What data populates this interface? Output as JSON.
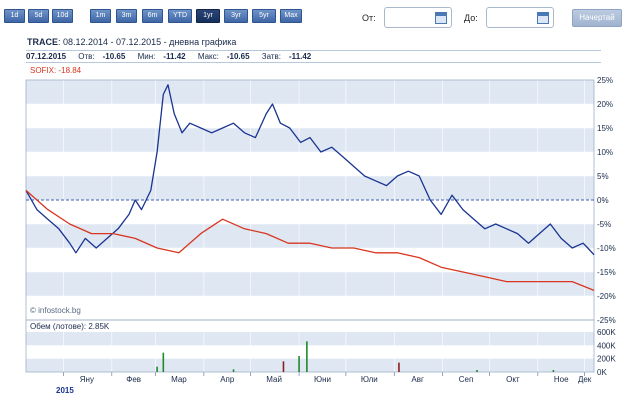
{
  "toolbar": {
    "ranges": [
      "1d",
      "5d",
      "10d",
      "1m",
      "3m",
      "6m",
      "YTD",
      "1yr",
      "3yr",
      "5yr",
      "Max"
    ],
    "active_range": "1yr",
    "from_label": "От:",
    "to_label": "До:",
    "from_value": "",
    "to_value": "",
    "go_label": "Начертай"
  },
  "header": {
    "symbol": "TRACE",
    "period": ": 08.12.2014 - 07.12.2015 - дневна графика"
  },
  "quote": {
    "date": "07.12.2015",
    "open_label": "Отв:",
    "open": "-10.65",
    "low_label": "Мин:",
    "low": "-11.42",
    "high_label": "Макс:",
    "high": "-10.65",
    "close_label": "Затв:",
    "close": "-11.42"
  },
  "compare": {
    "label": "SOFIX: -18.84",
    "color": "#d8361f"
  },
  "watermark": "© infostock.bg",
  "volume": {
    "label": "Обем (лотове): 2.85K"
  },
  "colors": {
    "main_line": "#1a3490",
    "compare_line": "#d8361f",
    "band": "#dfe7f3",
    "up_bar": "#1f8a2a",
    "down_bar": "#8a1f1f"
  },
  "chart_data": {
    "type": "line",
    "x": [
      "2014-12-08",
      "2015-01-05",
      "2015-02-02",
      "2015-03-02",
      "2015-04-01",
      "2015-05-04",
      "2015-06-01",
      "2015-07-01",
      "2015-08-03",
      "2015-09-01",
      "2015-10-01",
      "2015-11-02",
      "2015-12-01",
      "2015-12-07"
    ],
    "x_ticks": [
      "Яну",
      "Фев",
      "Мар",
      "Апр",
      "Май",
      "Юни",
      "Юли",
      "Авг",
      "Сеп",
      "Окт",
      "Ное",
      "Дек"
    ],
    "x_year_label": "2015",
    "y_ticks": [
      "25%",
      "20%",
      "15%",
      "10%",
      "5%",
      "0%",
      "-5%",
      "-10%",
      "-15%",
      "-20%",
      "-25%"
    ],
    "ylim": [
      -25,
      25
    ],
    "series": [
      {
        "name": "TRACE",
        "points": [
          [
            "2014-12-08",
            2
          ],
          [
            "2014-12-15",
            -2
          ],
          [
            "2014-12-22",
            -4
          ],
          [
            "2014-12-29",
            -6
          ],
          [
            "2015-01-05",
            -9
          ],
          [
            "2015-01-09",
            -11
          ],
          [
            "2015-01-15",
            -8
          ],
          [
            "2015-01-22",
            -10
          ],
          [
            "2015-01-29",
            -8
          ],
          [
            "2015-02-05",
            -6
          ],
          [
            "2015-02-12",
            -3
          ],
          [
            "2015-02-16",
            0
          ],
          [
            "2015-02-20",
            -2
          ],
          [
            "2015-02-26",
            2
          ],
          [
            "2015-03-02",
            10
          ],
          [
            "2015-03-06",
            22
          ],
          [
            "2015-03-09",
            24
          ],
          [
            "2015-03-13",
            18
          ],
          [
            "2015-03-18",
            14
          ],
          [
            "2015-03-23",
            16
          ],
          [
            "2015-03-30",
            15
          ],
          [
            "2015-04-06",
            14
          ],
          [
            "2015-04-13",
            15
          ],
          [
            "2015-04-20",
            16
          ],
          [
            "2015-04-27",
            14
          ],
          [
            "2015-05-04",
            13
          ],
          [
            "2015-05-11",
            18
          ],
          [
            "2015-05-15",
            20
          ],
          [
            "2015-05-20",
            16
          ],
          [
            "2015-05-26",
            15
          ],
          [
            "2015-06-02",
            12
          ],
          [
            "2015-06-08",
            13
          ],
          [
            "2015-06-15",
            10
          ],
          [
            "2015-06-22",
            11
          ],
          [
            "2015-06-29",
            9
          ],
          [
            "2015-07-06",
            7
          ],
          [
            "2015-07-13",
            5
          ],
          [
            "2015-07-20",
            4
          ],
          [
            "2015-07-27",
            3
          ],
          [
            "2015-08-03",
            5
          ],
          [
            "2015-08-10",
            6
          ],
          [
            "2015-08-17",
            5
          ],
          [
            "2015-08-24",
            0
          ],
          [
            "2015-08-31",
            -3
          ],
          [
            "2015-09-07",
            1
          ],
          [
            "2015-09-14",
            -2
          ],
          [
            "2015-09-21",
            -4
          ],
          [
            "2015-09-28",
            -6
          ],
          [
            "2015-10-05",
            -5
          ],
          [
            "2015-10-12",
            -6
          ],
          [
            "2015-10-19",
            -7
          ],
          [
            "2015-10-26",
            -9
          ],
          [
            "2015-11-02",
            -7
          ],
          [
            "2015-11-09",
            -5
          ],
          [
            "2015-11-16",
            -8
          ],
          [
            "2015-11-23",
            -10
          ],
          [
            "2015-11-30",
            -9
          ],
          [
            "2015-12-03",
            -10
          ],
          [
            "2015-12-07",
            -11.42
          ]
        ]
      },
      {
        "name": "SOFIX",
        "points": [
          [
            "2014-12-08",
            2
          ],
          [
            "2014-12-22",
            -2
          ],
          [
            "2015-01-05",
            -5
          ],
          [
            "2015-01-19",
            -7
          ],
          [
            "2015-02-02",
            -7
          ],
          [
            "2015-02-16",
            -8
          ],
          [
            "2015-03-02",
            -10
          ],
          [
            "2015-03-16",
            -11
          ],
          [
            "2015-03-30",
            -7
          ],
          [
            "2015-04-13",
            -4
          ],
          [
            "2015-04-27",
            -6
          ],
          [
            "2015-05-11",
            -7
          ],
          [
            "2015-05-25",
            -9
          ],
          [
            "2015-06-08",
            -9
          ],
          [
            "2015-06-22",
            -10
          ],
          [
            "2015-07-06",
            -10
          ],
          [
            "2015-07-20",
            -11
          ],
          [
            "2015-08-03",
            -11
          ],
          [
            "2015-08-17",
            -12
          ],
          [
            "2015-08-31",
            -14
          ],
          [
            "2015-09-14",
            -15
          ],
          [
            "2015-09-28",
            -16
          ],
          [
            "2015-10-12",
            -17
          ],
          [
            "2015-10-26",
            -17
          ],
          [
            "2015-11-09",
            -17
          ],
          [
            "2015-11-23",
            -17
          ],
          [
            "2015-12-07",
            -18.84
          ]
        ]
      }
    ],
    "volume": {
      "y_ticks": [
        "600K",
        "400K",
        "200K",
        "0K"
      ],
      "ylim": [
        0,
        600
      ],
      "bars": [
        {
          "date": "2015-03-02",
          "value": 80,
          "dir": "up"
        },
        {
          "date": "2015-03-06",
          "value": 290,
          "dir": "up"
        },
        {
          "date": "2015-04-20",
          "value": 40,
          "dir": "up"
        },
        {
          "date": "2015-05-22",
          "value": 160,
          "dir": "down"
        },
        {
          "date": "2015-06-01",
          "value": 240,
          "dir": "up"
        },
        {
          "date": "2015-06-06",
          "value": 460,
          "dir": "up"
        },
        {
          "date": "2015-08-04",
          "value": 140,
          "dir": "down"
        },
        {
          "date": "2015-09-23",
          "value": 30,
          "dir": "up"
        },
        {
          "date": "2015-11-11",
          "value": 30,
          "dir": "up"
        }
      ]
    }
  }
}
